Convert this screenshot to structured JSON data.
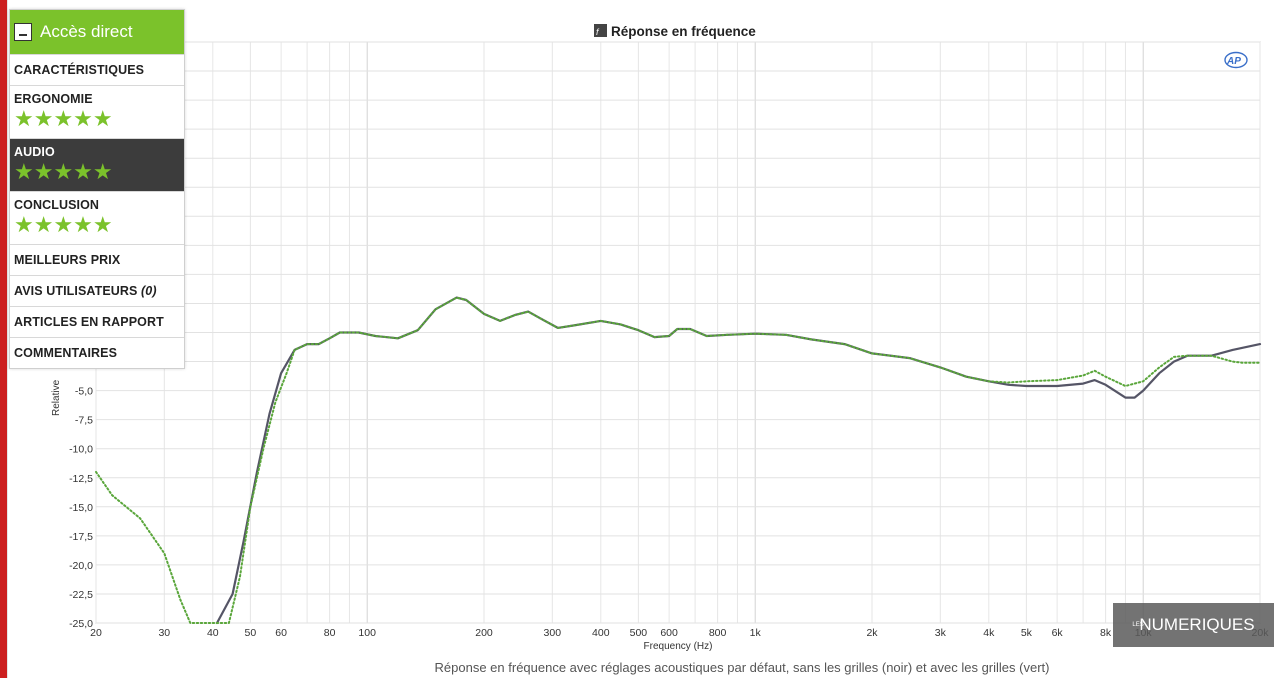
{
  "sidebar": {
    "header_label": "Accès direct",
    "items": [
      {
        "label": "CARACTÉRISTIQUES"
      },
      {
        "label": "ERGONOMIE",
        "stars": "★★★★★"
      },
      {
        "label": "AUDIO",
        "stars": "★★★★★"
      },
      {
        "label": "CONCLUSION",
        "stars": "★★★★★"
      },
      {
        "label": "MEILLEURS PRIX"
      },
      {
        "label": "AVIS UTILISATEURS",
        "count": "(0)"
      },
      {
        "label": "ARTICLES EN RAPPORT"
      },
      {
        "label": "COMMENTAIRES"
      }
    ],
    "active_item": "AUDIO",
    "colors": {
      "accent": "#7bc22b",
      "active_bg": "#3c3c3c"
    }
  },
  "badge": {
    "les": "LES",
    "text": "NUMERIQUES"
  },
  "caption": "Réponse en fréquence avec réglages acoustiques par défaut, sans les grilles (noir) et avec les grilles (vert)",
  "chart_data": {
    "type": "line",
    "title": "Réponse en fréquence",
    "watermark": "AP",
    "xlabel": "Frequency (Hz)",
    "ylabel": "Relative",
    "x_scale": "log",
    "xlim": [
      20,
      20000
    ],
    "ylim": [
      -25,
      25
    ],
    "grid": true,
    "x_ticks": [
      {
        "v": 20,
        "label": "20"
      },
      {
        "v": 30,
        "label": "30"
      },
      {
        "v": 40,
        "label": "40"
      },
      {
        "v": 50,
        "label": "50"
      },
      {
        "v": 60,
        "label": "60"
      },
      {
        "v": 80,
        "label": "80"
      },
      {
        "v": 100,
        "label": "100"
      },
      {
        "v": 200,
        "label": "200"
      },
      {
        "v": 300,
        "label": "300"
      },
      {
        "v": 400,
        "label": "400"
      },
      {
        "v": 500,
        "label": "500"
      },
      {
        "v": 600,
        "label": "600"
      },
      {
        "v": 800,
        "label": "800"
      },
      {
        "v": 1000,
        "label": "1k"
      },
      {
        "v": 2000,
        "label": "2k"
      },
      {
        "v": 3000,
        "label": "3k"
      },
      {
        "v": 4000,
        "label": "4k"
      },
      {
        "v": 5000,
        "label": "5k"
      },
      {
        "v": 6000,
        "label": "6k"
      },
      {
        "v": 8000,
        "label": "8k"
      },
      {
        "v": 10000,
        "label": "10k"
      },
      {
        "v": 20000,
        "label": "20k"
      }
    ],
    "y_ticks": [
      {
        "v": -5,
        "label": "-5,0"
      },
      {
        "v": -7.5,
        "label": "-7,5"
      },
      {
        "v": -10,
        "label": "-10,0"
      },
      {
        "v": -12.5,
        "label": "-12,5"
      },
      {
        "v": -15,
        "label": "-15,0"
      },
      {
        "v": -17.5,
        "label": "-17,5"
      },
      {
        "v": -20,
        "label": "-20,0"
      },
      {
        "v": -22.5,
        "label": "-22,5"
      },
      {
        "v": -25,
        "label": "-25,0"
      }
    ],
    "series": [
      {
        "color": "#555566",
        "style": "solid",
        "points": [
          [
            41,
            -25
          ],
          [
            45,
            -22.5
          ],
          [
            48,
            -18
          ],
          [
            52,
            -12
          ],
          [
            56,
            -7
          ],
          [
            60,
            -3.5
          ],
          [
            65,
            -1.5
          ],
          [
            70,
            -1
          ],
          [
            75,
            -1
          ],
          [
            80,
            -0.5
          ],
          [
            85,
            0
          ],
          [
            95,
            0
          ],
          [
            105,
            -0.3
          ],
          [
            120,
            -0.5
          ],
          [
            135,
            0.2
          ],
          [
            150,
            2
          ],
          [
            170,
            3
          ],
          [
            180,
            2.8
          ],
          [
            200,
            1.6
          ],
          [
            220,
            1
          ],
          [
            240,
            1.5
          ],
          [
            260,
            1.8
          ],
          [
            280,
            1.2
          ],
          [
            310,
            0.4
          ],
          [
            340,
            0.6
          ],
          [
            400,
            1
          ],
          [
            450,
            0.7
          ],
          [
            500,
            0.2
          ],
          [
            550,
            -0.4
          ],
          [
            600,
            -0.3
          ],
          [
            630,
            0.3
          ],
          [
            680,
            0.3
          ],
          [
            750,
            -0.3
          ],
          [
            850,
            -0.2
          ],
          [
            1000,
            -0.1
          ],
          [
            1200,
            -0.2
          ],
          [
            1400,
            -0.6
          ],
          [
            1700,
            -1
          ],
          [
            2000,
            -1.8
          ],
          [
            2500,
            -2.2
          ],
          [
            3000,
            -3
          ],
          [
            3500,
            -3.8
          ],
          [
            4000,
            -4.2
          ],
          [
            4500,
            -4.5
          ],
          [
            5000,
            -4.6
          ],
          [
            6000,
            -4.6
          ],
          [
            7000,
            -4.4
          ],
          [
            7500,
            -4.1
          ],
          [
            8000,
            -4.5
          ],
          [
            9000,
            -5.6
          ],
          [
            9500,
            -5.6
          ],
          [
            10000,
            -5
          ],
          [
            11000,
            -3.5
          ],
          [
            12000,
            -2.5
          ],
          [
            13000,
            -2
          ],
          [
            15000,
            -2
          ],
          [
            17000,
            -1.5
          ],
          [
            20000,
            -1
          ]
        ]
      },
      {
        "color": "#5aa63b",
        "style": "dotted",
        "points": [
          [
            20,
            -12
          ],
          [
            22,
            -14
          ],
          [
            26,
            -16
          ],
          [
            30,
            -19
          ],
          [
            33,
            -23
          ],
          [
            35,
            -25
          ],
          [
            44,
            -25
          ],
          [
            47,
            -21
          ],
          [
            50,
            -15
          ],
          [
            54,
            -10
          ],
          [
            58,
            -6
          ],
          [
            62,
            -3.5
          ],
          [
            65,
            -1.5
          ],
          [
            70,
            -1
          ],
          [
            75,
            -1
          ],
          [
            80,
            -0.5
          ],
          [
            85,
            0
          ],
          [
            95,
            0
          ],
          [
            105,
            -0.3
          ],
          [
            120,
            -0.5
          ],
          [
            135,
            0.2
          ],
          [
            150,
            2
          ],
          [
            170,
            3
          ],
          [
            180,
            2.8
          ],
          [
            200,
            1.6
          ],
          [
            220,
            1
          ],
          [
            240,
            1.5
          ],
          [
            260,
            1.8
          ],
          [
            280,
            1.2
          ],
          [
            310,
            0.4
          ],
          [
            340,
            0.6
          ],
          [
            400,
            1
          ],
          [
            450,
            0.7
          ],
          [
            500,
            0.2
          ],
          [
            550,
            -0.4
          ],
          [
            600,
            -0.3
          ],
          [
            630,
            0.3
          ],
          [
            680,
            0.3
          ],
          [
            750,
            -0.3
          ],
          [
            850,
            -0.2
          ],
          [
            1000,
            -0.1
          ],
          [
            1200,
            -0.2
          ],
          [
            1400,
            -0.6
          ],
          [
            1700,
            -1
          ],
          [
            2000,
            -1.8
          ],
          [
            2500,
            -2.2
          ],
          [
            3000,
            -3
          ],
          [
            3500,
            -3.8
          ],
          [
            4000,
            -4.2
          ],
          [
            4500,
            -4.3
          ],
          [
            5000,
            -4.2
          ],
          [
            6000,
            -4.1
          ],
          [
            7000,
            -3.7
          ],
          [
            7500,
            -3.3
          ],
          [
            8000,
            -3.8
          ],
          [
            9000,
            -4.6
          ],
          [
            10000,
            -4.2
          ],
          [
            11000,
            -3
          ],
          [
            12000,
            -2.1
          ],
          [
            13000,
            -2
          ],
          [
            15000,
            -2
          ],
          [
            17000,
            -2.5
          ],
          [
            18000,
            -2.6
          ],
          [
            20000,
            -2.6
          ]
        ]
      }
    ]
  }
}
